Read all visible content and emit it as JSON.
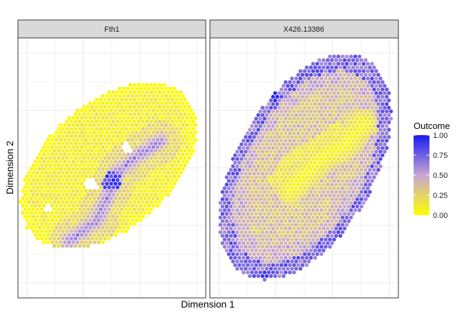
{
  "chart_data": {
    "type": "scatter",
    "xlabel": "Dimension 1",
    "ylabel": "Dimension 2",
    "grid": true,
    "legend_placement": "right",
    "facets": [
      {
        "name": "Fth1"
      },
      {
        "name": "X426.13386"
      }
    ],
    "color_scale": {
      "title": "Outcome",
      "low_color": "#ffff00",
      "mid_color": "#c8a6d2",
      "high_color": "#1a1af0",
      "range": [
        0,
        1
      ],
      "ticks": [
        "0.00",
        "0.25",
        "0.50",
        "0.75",
        "1.00"
      ]
    }
  }
}
